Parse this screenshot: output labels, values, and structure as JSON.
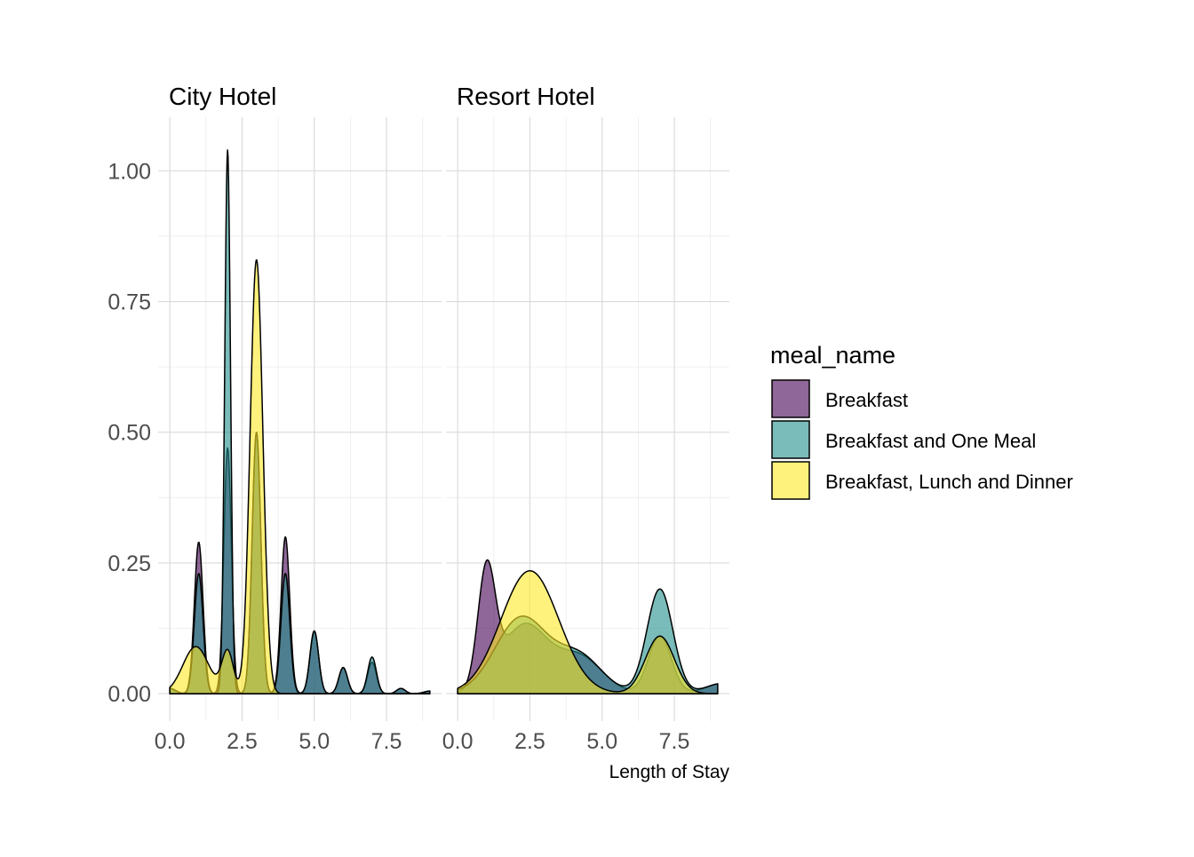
{
  "chart_data": {
    "type": "area",
    "subtype": "density",
    "facets": [
      "City Hotel",
      "Resort Hotel"
    ],
    "xlabel": "Length of Stay",
    "ylabel": "",
    "xlim": [
      0,
      9
    ],
    "ylim": [
      0,
      1.05
    ],
    "x_ticks": [
      0.0,
      2.5,
      5.0,
      7.5
    ],
    "x_tick_labels": [
      "0.0",
      "2.5",
      "5.0",
      "7.5"
    ],
    "y_ticks": [
      0.0,
      0.25,
      0.5,
      0.75,
      1.0
    ],
    "y_tick_labels": [
      "0.00",
      "0.25",
      "0.50",
      "0.75",
      "1.00"
    ],
    "grid": true,
    "legend": {
      "title": "meal_name",
      "position": "right",
      "entries": [
        "Breakfast",
        "Breakfast and One Meal",
        "Breakfast, Lunch and Dinner"
      ]
    },
    "colors": {
      "Breakfast": "#440154",
      "Breakfast and One Meal": "#21908C",
      "Breakfast, Lunch and Dinner": "#FDE725"
    },
    "fill_alpha": 0.6,
    "panels": [
      {
        "facet": "City Hotel",
        "series": [
          {
            "name": "Breakfast",
            "components": [
              {
                "mu": 0,
                "h": 0.01,
                "s": 0.2
              },
              {
                "mu": 1,
                "h": 0.29,
                "s": 0.15
              },
              {
                "mu": 2,
                "h": 0.47,
                "s": 0.13
              },
              {
                "mu": 3,
                "h": 0.5,
                "s": 0.15
              },
              {
                "mu": 4,
                "h": 0.3,
                "s": 0.15
              },
              {
                "mu": 5,
                "h": 0.12,
                "s": 0.15
              },
              {
                "mu": 6,
                "h": 0.05,
                "s": 0.15
              },
              {
                "mu": 7,
                "h": 0.06,
                "s": 0.15
              },
              {
                "mu": 8,
                "h": 0.01,
                "s": 0.15
              },
              {
                "mu": 9,
                "h": 0.005,
                "s": 0.2
              }
            ]
          },
          {
            "name": "Breakfast and One Meal",
            "components": [
              {
                "mu": 0,
                "h": 0.01,
                "s": 0.2
              },
              {
                "mu": 1,
                "h": 0.23,
                "s": 0.15
              },
              {
                "mu": 2,
                "h": 1.04,
                "s": 0.1
              },
              {
                "mu": 3,
                "h": 0.5,
                "s": 0.15
              },
              {
                "mu": 4,
                "h": 0.23,
                "s": 0.15
              },
              {
                "mu": 5,
                "h": 0.12,
                "s": 0.15
              },
              {
                "mu": 6,
                "h": 0.05,
                "s": 0.15
              },
              {
                "mu": 7,
                "h": 0.07,
                "s": 0.15
              },
              {
                "mu": 8,
                "h": 0.01,
                "s": 0.15
              },
              {
                "mu": 9,
                "h": 0.005,
                "s": 0.2
              }
            ]
          },
          {
            "name": "Breakfast, Lunch and Dinner",
            "components": [
              {
                "mu": 0.9,
                "h": 0.09,
                "s": 0.45
              },
              {
                "mu": 2.0,
                "h": 0.08,
                "s": 0.2
              },
              {
                "mu": 3.0,
                "h": 0.83,
                "s": 0.22
              }
            ]
          }
        ]
      },
      {
        "facet": "Resort Hotel",
        "series": [
          {
            "name": "Breakfast",
            "components": [
              {
                "mu": 1.0,
                "h": 0.22,
                "s": 0.3
              },
              {
                "mu": 2.3,
                "h": 0.13,
                "s": 0.8
              },
              {
                "mu": 4.2,
                "h": 0.07,
                "s": 0.8
              },
              {
                "mu": 7.0,
                "h": 0.11,
                "s": 0.4
              },
              {
                "mu": 9.2,
                "h": 0.02,
                "s": 0.6
              }
            ]
          },
          {
            "name": "Breakfast and One Meal",
            "components": [
              {
                "mu": 2.2,
                "h": 0.145,
                "s": 0.9
              },
              {
                "mu": 4.2,
                "h": 0.07,
                "s": 0.8
              },
              {
                "mu": 7.0,
                "h": 0.2,
                "s": 0.45
              },
              {
                "mu": 9.2,
                "h": 0.02,
                "s": 0.6
              }
            ]
          },
          {
            "name": "Breakfast, Lunch and Dinner",
            "components": [
              {
                "mu": 2.5,
                "h": 0.235,
                "s": 1.0
              },
              {
                "mu": 7.0,
                "h": 0.11,
                "s": 0.5
              }
            ]
          }
        ]
      }
    ]
  }
}
